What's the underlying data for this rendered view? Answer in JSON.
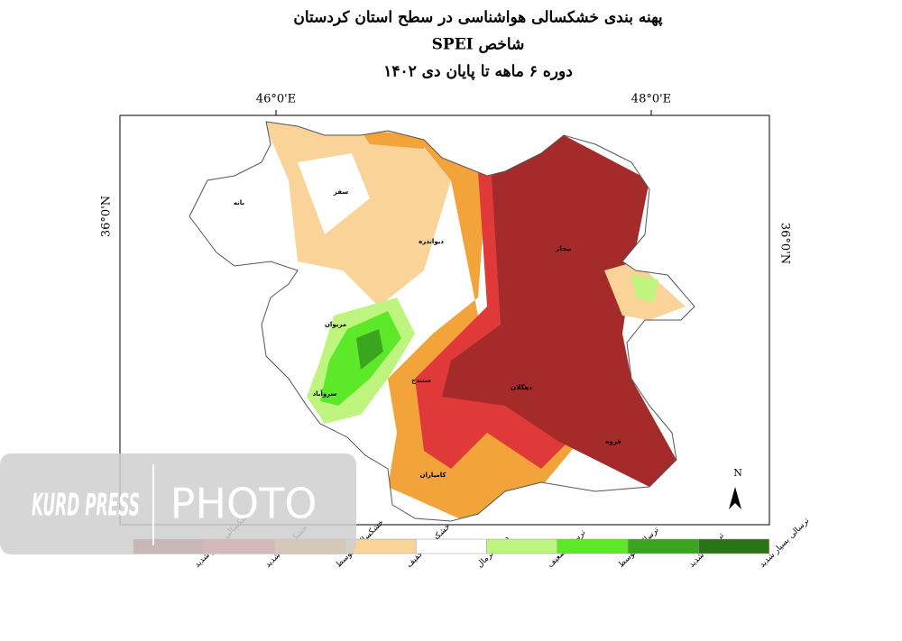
{
  "header": {
    "title": "پهنه بندی خشکسالی هواشناسی در سطح استان کردستان",
    "subtitle": "شاخص SPEI",
    "period": "دوره ۶ ماهه تا پایان دی ۱۴۰۲"
  },
  "coordinates": {
    "lon_left": "46°0'E",
    "lon_right": "48°0'E",
    "lat_left": "36°0'N",
    "lat_right": "36°0'N"
  },
  "cities": [
    "بانه",
    "سقز",
    "دیواندره",
    "بیجار",
    "مریوان",
    "سنندج",
    "سروآباد",
    "دهگلان",
    "قروه",
    "کامیاران"
  ],
  "north": "N",
  "legend": [
    {
      "label": "خشکسالی بسیار شدید",
      "color": "#a52a2a"
    },
    {
      "label": "خشکسالی شدید",
      "color": "#e0393a"
    },
    {
      "label": "خشکسالی متوسط",
      "color": "#f2a43a"
    },
    {
      "label": "خشکسالی خفیف",
      "color": "#f9d397"
    },
    {
      "label": "در حد نرمال",
      "color": "#ffffff"
    },
    {
      "label": "ترسالی ضعیف",
      "color": "#bdf57e"
    },
    {
      "label": "ترسالی متوسط",
      "color": "#5ee82a"
    },
    {
      "label": "ترسالی شدید",
      "color": "#3aa51f"
    },
    {
      "label": "ترسالی بسیار شدید",
      "color": "#2a7318"
    }
  ],
  "watermark": {
    "brand": "KURD PRESS",
    "label": "PHOTO"
  }
}
